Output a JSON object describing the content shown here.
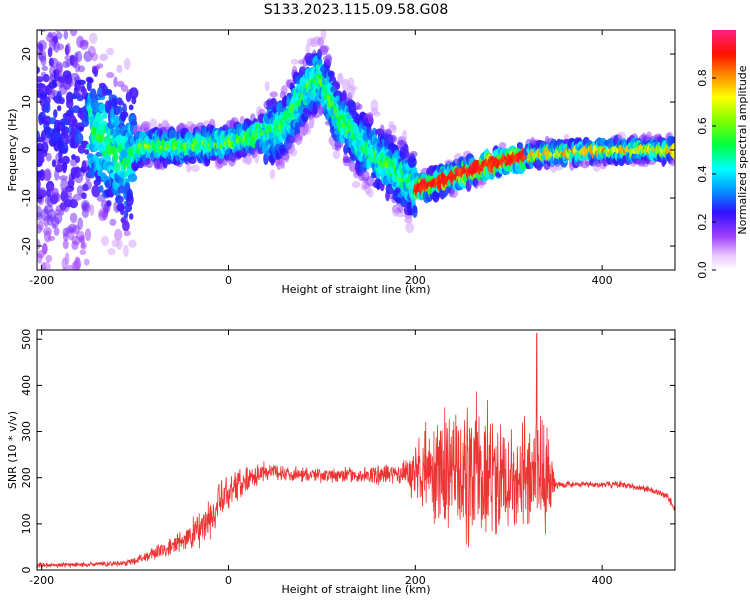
{
  "title": "S133.2023.115.09.58.G08",
  "chart_data": [
    {
      "type": "heatmap",
      "xlabel": "Height of straight line (km)",
      "ylabel": "Frequency (Hz)",
      "xlim": [
        -205,
        478
      ],
      "ylim": [
        -25,
        25
      ],
      "xticks": [
        -200,
        0,
        200,
        400
      ],
      "yticks": [
        20,
        10,
        0,
        -10,
        -20
      ],
      "colorbar": {
        "label": "Normalized spectral amplitude",
        "range": [
          0,
          1
        ],
        "ticks": [
          0.0,
          0.2,
          0.4,
          0.6,
          0.8
        ]
      },
      "ridge": {
        "x": [
          -150,
          -130,
          -110,
          -90,
          -60,
          -30,
          0,
          20,
          40,
          60,
          75,
          90,
          100,
          115,
          130,
          150,
          170,
          190,
          200,
          220,
          250,
          280,
          300,
          330,
          360,
          400,
          440,
          478
        ],
        "frequency": [
          5,
          1,
          -2,
          1,
          0.5,
          1,
          1.5,
          2.5,
          3.5,
          5,
          10,
          14,
          15,
          8,
          4,
          0,
          -3,
          -6,
          -8,
          -7,
          -5,
          -3,
          -2,
          -1,
          -0.5,
          -0.2,
          0,
          0
        ]
      }
    },
    {
      "type": "line",
      "xlabel": "Height of straight line (km)",
      "ylabel": "SNR (10 * v/v)",
      "xlim": [
        -205,
        478
      ],
      "ylim": [
        0,
        520
      ],
      "xticks": [
        -200,
        0,
        200,
        400
      ],
      "yticks": [
        0,
        100,
        200,
        300,
        400,
        500
      ],
      "color": "#ee3333",
      "series": [
        {
          "x": [
            -205,
            -150,
            -110,
            -90,
            -60,
            -40,
            -20,
            0,
            20,
            40,
            60,
            100,
            150,
            190,
            210,
            240,
            270,
            300,
            330,
            345,
            350,
            380,
            420,
            450,
            470,
            478
          ],
          "mean": [
            10,
            12,
            15,
            28,
            50,
            75,
            110,
            170,
            200,
            215,
            210,
            205,
            205,
            210,
            215,
            210,
            205,
            205,
            200,
            200,
            185,
            185,
            185,
            175,
            160,
            130
          ],
          "spread": [
            6,
            6,
            8,
            15,
            25,
            40,
            60,
            55,
            35,
            25,
            20,
            18,
            20,
            40,
            110,
            170,
            190,
            170,
            150,
            140,
            10,
            8,
            8,
            8,
            10,
            18
          ],
          "peak": [
            330,
            513
          ]
        }
      ]
    }
  ]
}
